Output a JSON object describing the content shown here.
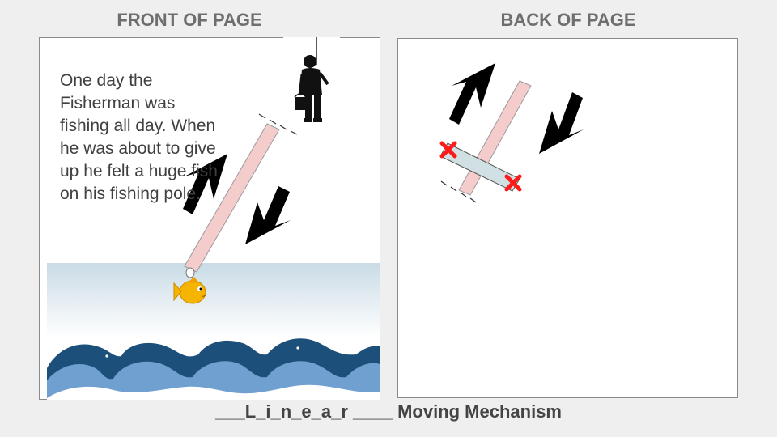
{
  "front": {
    "heading": "FRONT OF PAGE",
    "story": "One day the Fisherman was fishing all day. When he was about to give up he felt a huge fish on his fishing pole."
  },
  "back": {
    "heading": "BACK OF PAGE"
  },
  "footer": {
    "text": "___L_i_n_e_a_r ____ Moving Mechanism"
  },
  "colors": {
    "background": "#efefef",
    "panel": "#ffffff",
    "heading_text": "#6e6e6e",
    "strip": "#f4cccc",
    "slot_bar": "#d0e0e3",
    "arrow": "#000000",
    "pin_x": "#ff0000",
    "sky_top": "#c9dbe6",
    "wave_dark": "#1c4f7a",
    "wave_light": "#6fa0cf",
    "fish": "#f5b400"
  },
  "icons": {
    "fisherman": "fisherman-silhouette",
    "fish": "fish-icon",
    "arrows": [
      "arrow-up-icon",
      "arrow-down-icon"
    ],
    "pins": [
      "x-pin-icon"
    ]
  }
}
